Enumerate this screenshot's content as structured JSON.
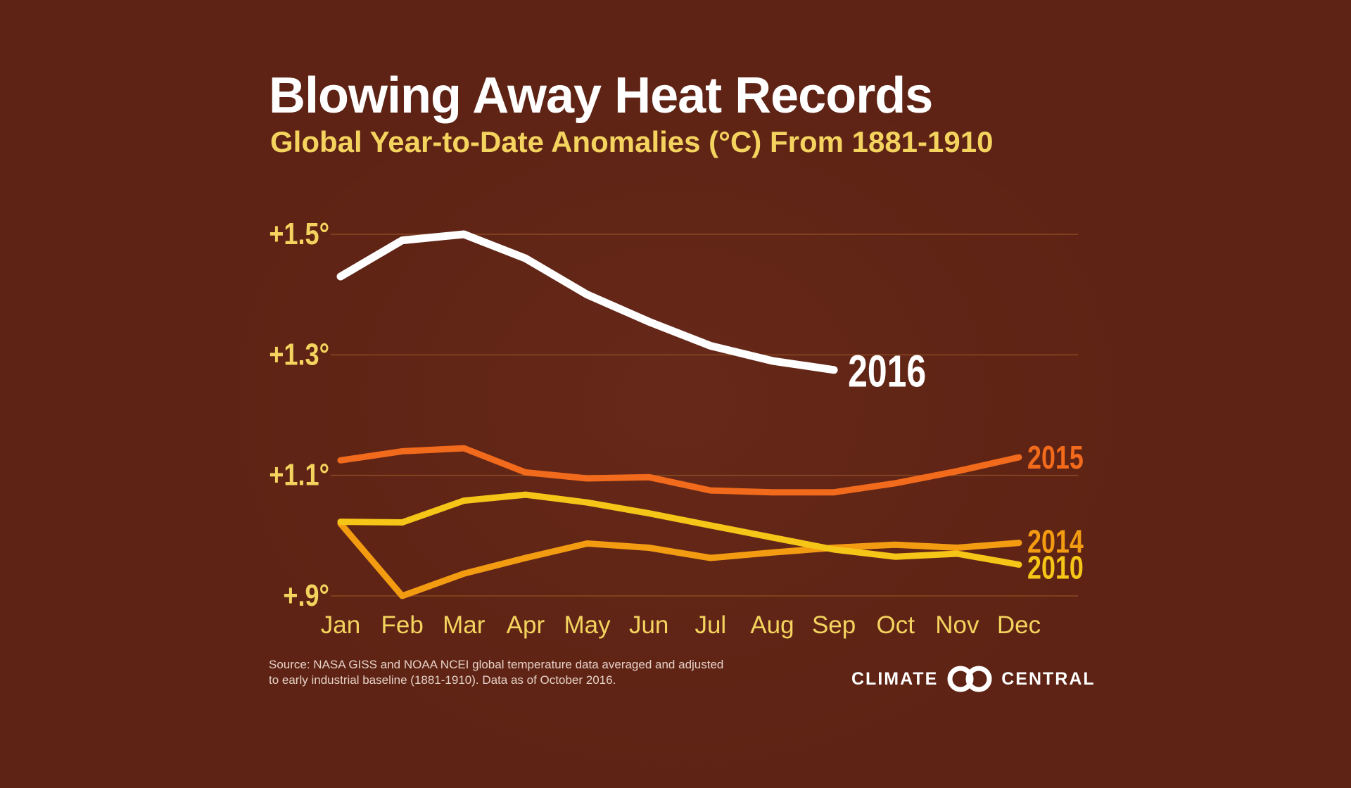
{
  "title": "Blowing Away Heat Records",
  "subtitle": "Global Year-to-Date Anomalies (°C) From 1881-1910",
  "source": "Source: NASA GISS and NOAA NCEI global temperature data averaged and adjusted to early industrial baseline (1881-1910). Data as of October 2016.",
  "logo": {
    "left_text": "CLIMATE",
    "right_text": "CENTRAL"
  },
  "colors": {
    "background": "#5e2314",
    "axis_text": "#f4d35e",
    "gridline": "#8a4a23",
    "s2016": "#ffffff",
    "s2015": "#f26a1b",
    "s2014": "#f39c12",
    "s2010": "#f5c518"
  },
  "chart_data": {
    "type": "line",
    "title": "Blowing Away Heat Records",
    "subtitle": "Global Year-to-Date Anomalies (°C) From 1881-1910",
    "xlabel": "",
    "ylabel": "",
    "categories": [
      "Jan",
      "Feb",
      "Mar",
      "Apr",
      "May",
      "Jun",
      "Jul",
      "Aug",
      "Sep",
      "Oct",
      "Nov",
      "Dec"
    ],
    "ylim": [
      0.9,
      1.5
    ],
    "yticks": [
      0.9,
      1.1,
      1.3,
      1.5
    ],
    "ytick_labels": [
      "+.9°",
      "+1.1°",
      "+1.3°",
      "+1.5°"
    ],
    "grid": true,
    "series": [
      {
        "name": "2016",
        "color": "#ffffff",
        "values": [
          1.43,
          1.49,
          1.5,
          1.46,
          1.4,
          1.355,
          1.315,
          1.29,
          1.275,
          null,
          null,
          null
        ]
      },
      {
        "name": "2015",
        "color": "#f26a1b",
        "values": [
          1.125,
          1.14,
          1.145,
          1.105,
          1.095,
          1.097,
          1.075,
          1.072,
          1.072,
          1.087,
          1.107,
          1.13
        ]
      },
      {
        "name": "2014",
        "color": "#f39c12",
        "values": [
          1.02,
          0.9,
          0.937,
          0.963,
          0.987,
          0.98,
          0.963,
          0.972,
          0.98,
          0.985,
          0.98,
          0.988
        ]
      },
      {
        "name": "2010",
        "color": "#f5c518",
        "values": [
          1.023,
          1.022,
          1.058,
          1.068,
          1.055,
          1.037,
          1.017,
          0.997,
          0.977,
          0.965,
          0.97,
          0.952
        ]
      }
    ]
  }
}
